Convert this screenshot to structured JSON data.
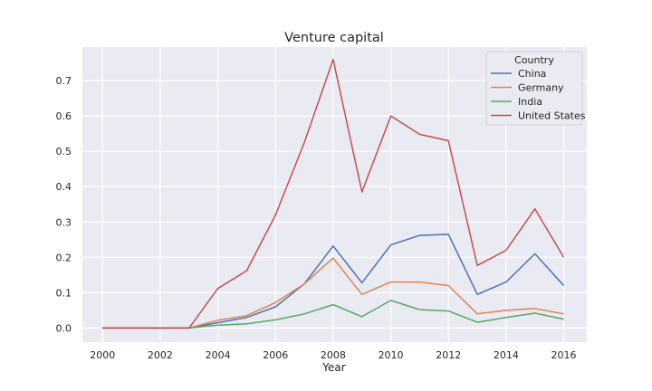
{
  "chart_data": {
    "type": "line",
    "title": "Venture capital",
    "xlabel": "Year",
    "ylabel": "",
    "x": [
      2000,
      2001,
      2002,
      2003,
      2004,
      2005,
      2006,
      2007,
      2008,
      2009,
      2010,
      2011,
      2012,
      2013,
      2014,
      2015,
      2016
    ],
    "xlim": [
      1999.3,
      2016.8
    ],
    "ylim": [
      -0.04,
      0.795
    ],
    "xticks": [
      "2000",
      "2002",
      "2004",
      "2006",
      "2008",
      "2010",
      "2012",
      "2014",
      "2016"
    ],
    "yticks": [
      "0.0",
      "0.1",
      "0.2",
      "0.3",
      "0.4",
      "0.5",
      "0.6",
      "0.7"
    ],
    "grid": true,
    "legend": {
      "title": "Country",
      "placement": "top-right"
    },
    "series": [
      {
        "name": "China",
        "color": "#4c72b0",
        "values": [
          0,
          0,
          0,
          0,
          0.015,
          0.03,
          0.06,
          0.125,
          0.232,
          0.128,
          0.235,
          0.262,
          0.265,
          0.095,
          0.13,
          0.21,
          0.12
        ]
      },
      {
        "name": "Germany",
        "color": "#dd8452",
        "values": [
          0,
          0,
          0,
          0,
          0.022,
          0.035,
          0.072,
          0.125,
          0.198,
          0.095,
          0.13,
          0.13,
          0.12,
          0.04,
          0.05,
          0.055,
          0.04
        ]
      },
      {
        "name": "India",
        "color": "#55a868",
        "values": [
          0,
          0,
          0,
          0,
          0.008,
          0.012,
          0.023,
          0.04,
          0.066,
          0.032,
          0.078,
          0.052,
          0.048,
          0.016,
          0.03,
          0.042,
          0.025
        ]
      },
      {
        "name": "United States",
        "color": "#c44e52",
        "values": [
          0,
          0,
          0,
          0,
          0.112,
          0.162,
          0.32,
          0.525,
          0.76,
          0.385,
          0.6,
          0.548,
          0.53,
          0.177,
          0.22,
          0.337,
          0.2
        ]
      }
    ]
  }
}
